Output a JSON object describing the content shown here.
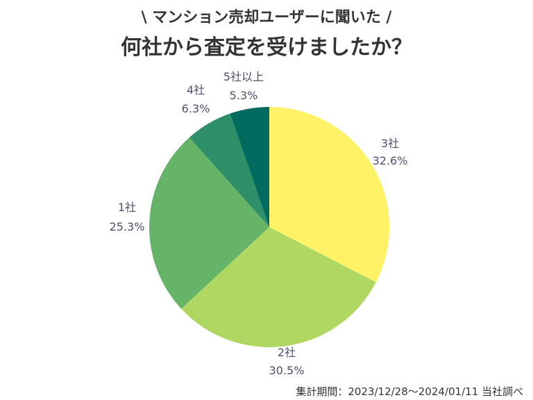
{
  "chart_data": {
    "type": "pie",
    "subtitle": "\\ マンション売却ユーザーに聞いた /",
    "title": "何社から査定を受けましたか？",
    "start": "top",
    "direction": "clockwise",
    "slices": [
      {
        "label": "3社",
        "value": 32.6,
        "value_label": "32.6%",
        "color": "#FFF266"
      },
      {
        "label": "2社",
        "value": 30.5,
        "value_label": "30.5%",
        "color": "#AFD762"
      },
      {
        "label": "1社",
        "value": 25.3,
        "value_label": "25.3%",
        "color": "#66B468"
      },
      {
        "label": "4社",
        "value": 6.3,
        "value_label": "6.3%",
        "color": "#2E8F68"
      },
      {
        "label": "5社以上",
        "value": 5.3,
        "value_label": "5.3%",
        "color": "#006B5E"
      }
    ],
    "note": "集計期間：2023/12/28〜2024/01/11 当社調べ"
  }
}
